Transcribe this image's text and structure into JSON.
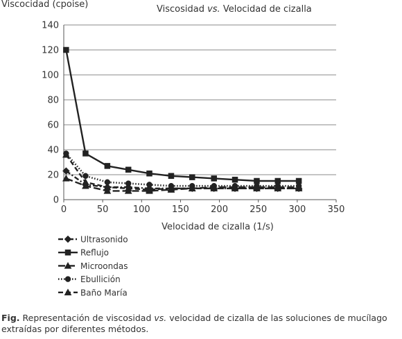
{
  "chart_data": {
    "type": "line",
    "title_parts": [
      "Viscosidad ",
      "vs.",
      " Velocidad de cizalla"
    ],
    "ylabel": "Viscocidad (cpoise)",
    "xlabel": "Velocidad de cizalla (1/s)",
    "xlim": [
      0,
      350
    ],
    "ylim": [
      0,
      140
    ],
    "xticks": [
      "0",
      "50",
      "100",
      "150",
      "200",
      "250",
      "300",
      "350"
    ],
    "yticks": [
      "0",
      "20",
      "40",
      "60",
      "80",
      "100",
      "120",
      "140"
    ],
    "grid": "horizontal",
    "legend_position": "bottom-left",
    "series": [
      {
        "name": "Ultrasonido",
        "marker": "diamond",
        "dash": "dash-dot",
        "x": [
          3,
          28,
          56,
          83,
          110,
          138,
          165,
          193,
          220,
          248,
          275,
          302
        ],
        "y": [
          23,
          12,
          10,
          10,
          9,
          9,
          9,
          9,
          9,
          9,
          9,
          9
        ]
      },
      {
        "name": "Reflujo",
        "marker": "square",
        "dash": "solid",
        "x": [
          3,
          28,
          56,
          83,
          110,
          138,
          165,
          193,
          220,
          248,
          275,
          302
        ],
        "y": [
          120,
          37,
          27,
          24,
          21,
          19,
          18,
          17,
          16,
          15,
          15,
          15
        ]
      },
      {
        "name": "Microondas",
        "marker": "triangle",
        "dash": "long-dash",
        "x": [
          3,
          28,
          56,
          83,
          110,
          138,
          165,
          193,
          220,
          248,
          275,
          302
        ],
        "y": [
          17,
          11,
          7,
          7,
          7,
          8,
          9,
          10,
          10,
          10,
          10,
          10
        ]
      },
      {
        "name": "Ebullición",
        "marker": "circle",
        "dash": "dotted",
        "x": [
          3,
          28,
          56,
          83,
          110,
          138,
          165,
          193,
          220,
          248,
          275,
          302
        ],
        "y": [
          37,
          19,
          14,
          13,
          12,
          11,
          11,
          11,
          11,
          11,
          11,
          11
        ]
      },
      {
        "name": "Baño María",
        "marker": "triangle",
        "dash": "dashed",
        "x": [
          3,
          28,
          56,
          83,
          110,
          138,
          165,
          193,
          220,
          248,
          275,
          302
        ],
        "y": [
          36,
          14,
          10,
          9,
          8,
          9,
          9,
          9,
          9,
          9,
          9,
          9
        ]
      }
    ]
  },
  "caption": {
    "lead": "Fig.",
    "text_before": " Representación de viscosidad ",
    "italic": "vs.",
    "text_after": " velocidad de cizalla de las soluciones de mucílago extraídas por diferentes métodos."
  }
}
